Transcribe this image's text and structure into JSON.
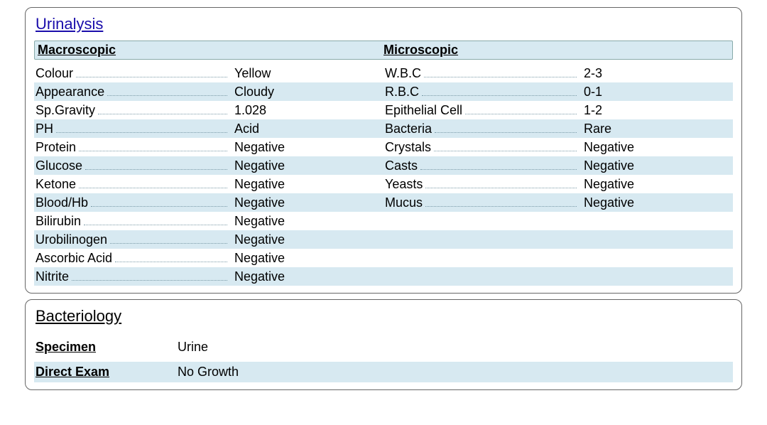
{
  "colors": {
    "stripe_bg": "#d7e9f1",
    "stripe_border": "#88aaaa",
    "link_title": "#1a0dab",
    "dot_color": "#7a9aa7",
    "panel_border": "#666666",
    "page_bg": "#ffffff",
    "text": "#000000"
  },
  "urinalysis": {
    "title": "Urinalysis",
    "columns": {
      "macro_header": "Macroscopic",
      "micro_header": "Microscopic"
    },
    "macroscopic": [
      {
        "label": "Colour",
        "value": "Yellow"
      },
      {
        "label": "Appearance",
        "value": "Cloudy"
      },
      {
        "label": "Sp.Gravity",
        "value": "1.028"
      },
      {
        "label": "PH",
        "value": "Acid"
      },
      {
        "label": "Protein",
        "value": "Negative"
      },
      {
        "label": "Glucose",
        "value": "Negative"
      },
      {
        "label": "Ketone",
        "value": "Negative"
      },
      {
        "label": "Blood/Hb",
        "value": "Negative"
      },
      {
        "label": "Bilirubin",
        "value": "Negative"
      },
      {
        "label": "Urobilinogen",
        "value": "Negative"
      },
      {
        "label": "Ascorbic Acid",
        "value": "Negative"
      },
      {
        "label": "Nitrite",
        "value": "Negative"
      }
    ],
    "microscopic": [
      {
        "label": "W.B.C",
        "value": "2-3"
      },
      {
        "label": "R.B.C",
        "value": "0-1"
      },
      {
        "label": "Epithelial Cell",
        "value": "1-2"
      },
      {
        "label": "Bacteria",
        "value": "Rare"
      },
      {
        "label": "Crystals",
        "value": "Negative"
      },
      {
        "label": "Casts",
        "value": "Negative"
      },
      {
        "label": "Yeasts",
        "value": "Negative"
      },
      {
        "label": "Mucus",
        "value": "Negative"
      }
    ]
  },
  "bacteriology": {
    "title": "Bacteriology",
    "specimen_label": "Specimen",
    "specimen_value": "Urine",
    "direct_exam_label": "Direct Exam",
    "direct_exam_value": "No Growth"
  }
}
